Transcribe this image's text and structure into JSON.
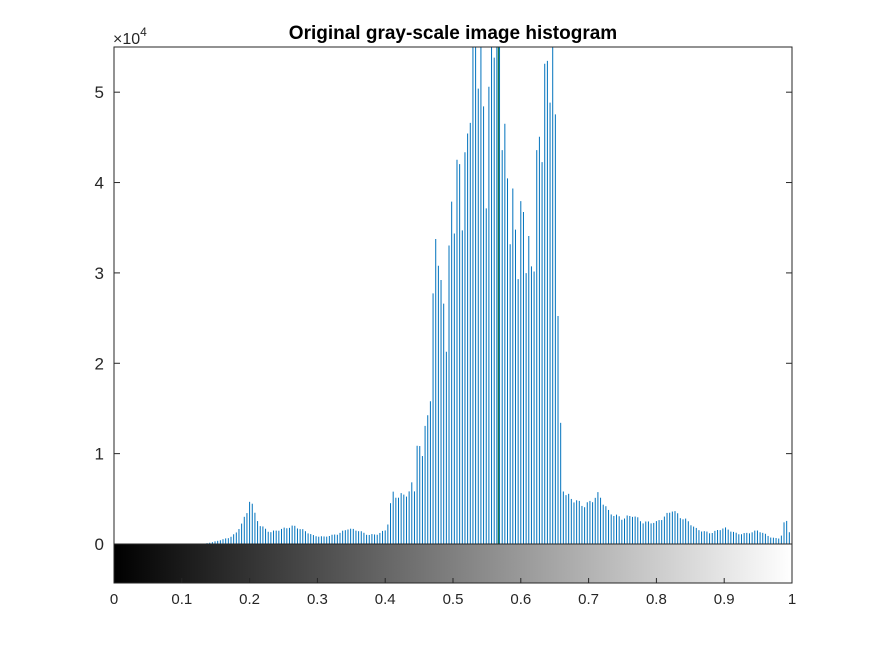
{
  "chart_data": {
    "type": "bar",
    "title": "Original gray-scale image histogram",
    "xlabel": "",
    "ylabel": "",
    "xlim": [
      0,
      1
    ],
    "ylim": [
      0,
      55000
    ],
    "y_exponent_label": "×10",
    "y_exponent_power": "4",
    "x_ticks": [
      0,
      0.1,
      0.2,
      0.3,
      0.4,
      0.5,
      0.6,
      0.7,
      0.8,
      0.9,
      1
    ],
    "x_tick_labels": [
      "0",
      "0.1",
      "0.2",
      "0.3",
      "0.4",
      "0.5",
      "0.6",
      "0.7",
      "0.8",
      "0.9",
      "1"
    ],
    "y_ticks": [
      0,
      10000,
      20000,
      30000,
      40000,
      50000
    ],
    "y_tick_labels": [
      "0",
      "1",
      "2",
      "3",
      "4",
      "5"
    ],
    "grid": false,
    "colorbar": "grayscale 0 to 1 below x-axis",
    "bar_color": "#0072BD",
    "special_line": {
      "x": 0.567,
      "color": "#1f7a4a"
    },
    "bins": 256,
    "anchors": [
      [
        0.0,
        0
      ],
      [
        0.13,
        0
      ],
      [
        0.145,
        200
      ],
      [
        0.16,
        500
      ],
      [
        0.17,
        700
      ],
      [
        0.18,
        1200
      ],
      [
        0.19,
        2500
      ],
      [
        0.197,
        3600
      ],
      [
        0.201,
        5400
      ],
      [
        0.206,
        3600
      ],
      [
        0.215,
        2100
      ],
      [
        0.23,
        1300
      ],
      [
        0.25,
        1700
      ],
      [
        0.265,
        2000
      ],
      [
        0.28,
        1500
      ],
      [
        0.295,
        900
      ],
      [
        0.31,
        800
      ],
      [
        0.33,
        1100
      ],
      [
        0.345,
        1700
      ],
      [
        0.36,
        1500
      ],
      [
        0.375,
        1000
      ],
      [
        0.39,
        1100
      ],
      [
        0.401,
        1600
      ],
      [
        0.405,
        2500
      ],
      [
        0.41,
        5700
      ],
      [
        0.42,
        5200
      ],
      [
        0.435,
        5700
      ],
      [
        0.445,
        7500
      ],
      [
        0.448,
        11700
      ],
      [
        0.452,
        9500
      ],
      [
        0.458,
        11000
      ],
      [
        0.465,
        14000
      ],
      [
        0.47,
        26000
      ],
      [
        0.475,
        36000
      ],
      [
        0.478,
        39000
      ],
      [
        0.482,
        28000
      ],
      [
        0.49,
        22000
      ],
      [
        0.5,
        38000
      ],
      [
        0.51,
        44000
      ],
      [
        0.52,
        40000
      ],
      [
        0.53,
        56000
      ],
      [
        0.54,
        58000
      ],
      [
        0.55,
        44000
      ],
      [
        0.56,
        56000
      ],
      [
        0.567,
        58000
      ],
      [
        0.575,
        46000
      ],
      [
        0.585,
        40000
      ],
      [
        0.595,
        30000
      ],
      [
        0.605,
        35000
      ],
      [
        0.615,
        32000
      ],
      [
        0.625,
        42000
      ],
      [
        0.635,
        45000
      ],
      [
        0.645,
        58000
      ],
      [
        0.65,
        56000
      ],
      [
        0.655,
        30000
      ],
      [
        0.66,
        7000
      ],
      [
        0.665,
        5500
      ],
      [
        0.68,
        4800
      ],
      [
        0.695,
        4200
      ],
      [
        0.715,
        5500
      ],
      [
        0.73,
        3500
      ],
      [
        0.75,
        2800
      ],
      [
        0.765,
        3200
      ],
      [
        0.78,
        2400
      ],
      [
        0.8,
        2400
      ],
      [
        0.815,
        3200
      ],
      [
        0.8235,
        3800
      ],
      [
        0.835,
        3000
      ],
      [
        0.845,
        2600
      ],
      [
        0.86,
        1600
      ],
      [
        0.88,
        1200
      ],
      [
        0.9,
        1800
      ],
      [
        0.92,
        1100
      ],
      [
        0.935,
        1200
      ],
      [
        0.95,
        1500
      ],
      [
        0.97,
        700
      ],
      [
        0.98,
        600
      ],
      [
        0.986,
        1100
      ],
      [
        0.99,
        3200
      ],
      [
        0.995,
        1600
      ],
      [
        1.0,
        600
      ]
    ]
  }
}
